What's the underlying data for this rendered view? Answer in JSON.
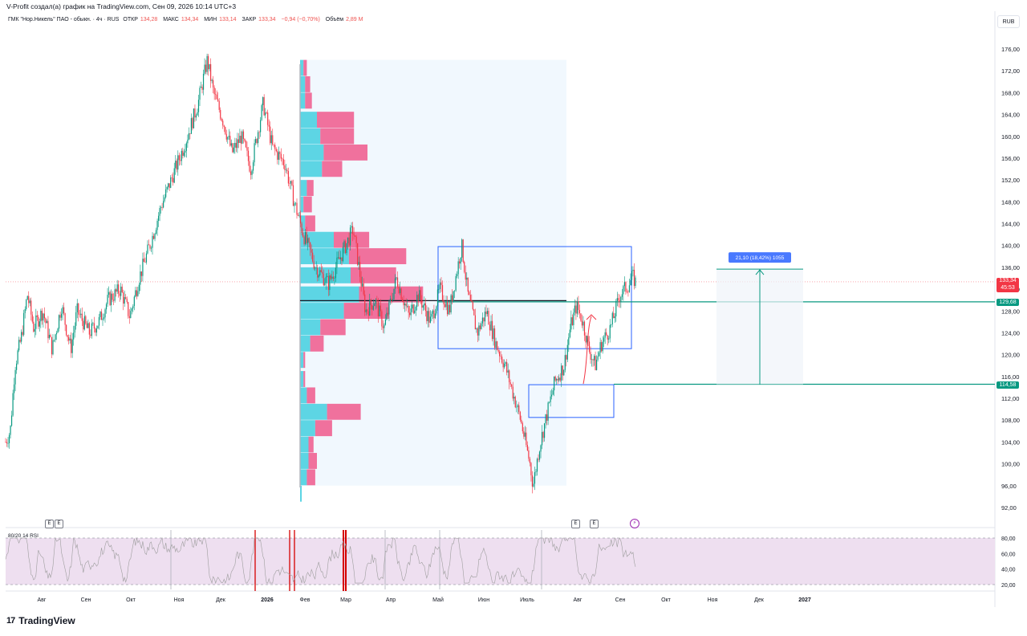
{
  "header": {
    "caption": "V-Profit создал(а) график на TradingView.com, Сен 09, 2026 10:14 UTC+3",
    "symbol": "ГМК \"Нор.Никель\" ПАО - обыкн. · 4ч · RUS",
    "open_label": "ОТКР",
    "open_value": "134,28",
    "high_label": "МАКС",
    "high_value": "134,34",
    "low_label": "МИН",
    "low_value": "133,14",
    "close_label": "ЗАКР",
    "close_value": "133,34",
    "change": "−0,94 (−0,70%)",
    "volume_label": "Объём",
    "volume_value": "2,89 M"
  },
  "currency_button": "RUB",
  "brand": {
    "mark": "17",
    "name": "TradingView"
  },
  "markers": {
    "earnings_label": "E"
  },
  "chart_data": {
    "type": "candlestick",
    "title": "",
    "price_axis_ticks": [
      "176,00",
      "172,00",
      "168,00",
      "164,00",
      "160,00",
      "156,00",
      "152,00",
      "148,00",
      "144,00",
      "140,00",
      "136,00",
      "132,00",
      "128,00",
      "124,00",
      "120,00",
      "116,00",
      "112,00",
      "108,00",
      "104,00",
      "100,00",
      "96,00",
      "92,00"
    ],
    "price_range": [
      90.5,
      178.5
    ],
    "time_axis_labels": [
      "Авг",
      "Сен",
      "Окт",
      "Ноя",
      "Дек",
      "2026",
      "Фев",
      "Мар",
      "Апр",
      "Май",
      "Июн",
      "Июль",
      "Авг",
      "Сен",
      "Окт",
      "Ноя",
      "Дек",
      "2027"
    ],
    "price_path": [
      [
        0,
        104
      ],
      [
        0.015,
        106
      ],
      [
        0.03,
        118
      ],
      [
        0.05,
        123
      ],
      [
        0.07,
        131
      ],
      [
        0.09,
        125
      ],
      [
        0.12,
        128
      ],
      [
        0.15,
        121
      ],
      [
        0.18,
        129
      ],
      [
        0.21,
        121
      ],
      [
        0.23,
        128
      ],
      [
        0.27,
        124
      ],
      [
        0.3,
        126
      ],
      [
        0.33,
        130
      ],
      [
        0.37,
        132
      ],
      [
        0.4,
        127
      ],
      [
        0.43,
        134
      ],
      [
        0.47,
        141
      ],
      [
        0.5,
        147
      ],
      [
        0.54,
        153
      ],
      [
        0.58,
        159
      ],
      [
        0.62,
        166
      ],
      [
        0.65,
        174
      ],
      [
        0.67,
        168
      ],
      [
        0.7,
        163
      ],
      [
        0.73,
        157
      ],
      [
        0.76,
        160
      ],
      [
        0.79,
        154
      ],
      [
        0.83,
        166
      ],
      [
        0.86,
        158
      ],
      [
        0.9,
        155
      ],
      [
        0.93,
        148
      ],
      [
        0.96,
        142
      ],
      [
        1.0,
        136
      ],
      [
        1.04,
        133
      ],
      [
        1.08,
        138
      ],
      [
        1.12,
        143
      ],
      [
        1.16,
        128
      ],
      [
        1.19,
        130
      ],
      [
        1.22,
        125
      ],
      [
        1.26,
        134
      ],
      [
        1.3,
        127
      ],
      [
        1.33,
        131
      ],
      [
        1.37,
        126
      ],
      [
        1.4,
        132
      ],
      [
        1.43,
        128
      ],
      [
        1.47,
        140
      ],
      [
        1.49,
        131
      ],
      [
        1.52,
        124
      ],
      [
        1.55,
        128
      ],
      [
        1.58,
        122
      ],
      [
        1.61,
        118
      ],
      [
        1.64,
        112
      ],
      [
        1.66,
        108
      ],
      [
        1.69,
        100
      ],
      [
        1.7,
        96
      ],
      [
        1.72,
        103
      ],
      [
        1.74,
        108
      ],
      [
        1.77,
        115
      ],
      [
        1.8,
        118
      ],
      [
        1.82,
        125
      ],
      [
        1.84,
        129
      ],
      [
        1.86,
        126
      ],
      [
        1.88,
        121
      ],
      [
        1.9,
        118
      ],
      [
        1.92,
        122
      ],
      [
        1.95,
        125
      ],
      [
        1.98,
        131
      ],
      [
        2.01,
        133
      ],
      [
        2.02,
        134.3
      ],
      [
        2.03,
        133.34
      ]
    ],
    "volume_profile": [
      {
        "price_low": 171,
        "price_high": 174,
        "buy": 2,
        "sell": 2
      },
      {
        "price_low": 168,
        "price_high": 171,
        "buy": 3,
        "sell": 3
      },
      {
        "price_low": 165,
        "price_high": 168,
        "buy": 3,
        "sell": 4
      },
      {
        "price_low": 161.5,
        "price_high": 164.5,
        "buy": 10,
        "sell": 22
      },
      {
        "price_low": 158.5,
        "price_high": 161.5,
        "buy": 12,
        "sell": 20
      },
      {
        "price_low": 155.5,
        "price_high": 158.5,
        "buy": 14,
        "sell": 26
      },
      {
        "price_low": 152.5,
        "price_high": 155.5,
        "buy": 13,
        "sell": 12
      },
      {
        "price_low": 149,
        "price_high": 152,
        "buy": 4,
        "sell": 4
      },
      {
        "price_low": 146,
        "price_high": 149,
        "buy": 2,
        "sell": 5
      },
      {
        "price_low": 142.5,
        "price_high": 145.5,
        "buy": 3,
        "sell": 6
      },
      {
        "price_low": 139.5,
        "price_high": 142.5,
        "buy": 20,
        "sell": 21
      },
      {
        "price_low": 136.5,
        "price_high": 139.5,
        "buy": 29,
        "sell": 34
      },
      {
        "price_low": 133,
        "price_high": 136,
        "buy": 30,
        "sell": 27
      },
      {
        "price_low": 129.5,
        "price_high": 132.5,
        "buy": 35,
        "sell": 38
      },
      {
        "price_low": 126.5,
        "price_high": 129.5,
        "buy": 26,
        "sell": 27
      },
      {
        "price_low": 123.5,
        "price_high": 126.5,
        "buy": 12,
        "sell": 15
      },
      {
        "price_low": 120.5,
        "price_high": 123.5,
        "buy": 6,
        "sell": 8
      },
      {
        "price_low": 117.5,
        "price_high": 120.5,
        "buy": 2,
        "sell": 1
      },
      {
        "price_low": 114,
        "price_high": 117,
        "buy": 2,
        "sell": 1
      },
      {
        "price_low": 111,
        "price_high": 114,
        "buy": 4,
        "sell": 5
      },
      {
        "price_low": 108,
        "price_high": 111,
        "buy": 16,
        "sell": 20
      },
      {
        "price_low": 105,
        "price_high": 108,
        "buy": 9,
        "sell": 10
      },
      {
        "price_low": 102,
        "price_high": 105,
        "buy": 5,
        "sell": 3
      },
      {
        "price_low": 99,
        "price_high": 102,
        "buy": 5,
        "sell": 5
      },
      {
        "price_low": 96,
        "price_high": 99,
        "buy": 4,
        "sell": 5
      },
      {
        "price_low": 93,
        "price_high": 96,
        "buy": 1,
        "sell": 0
      }
    ],
    "point_of_control": 129.9,
    "profile_range_prices": [
      96,
      174
    ],
    "zones": [
      {
        "name": "range-box",
        "price_top": 139.8,
        "price_bottom": 121.1
      },
      {
        "name": "support-box",
        "price_top": 114.5,
        "price_bottom": 108.5
      }
    ],
    "levels": [
      {
        "name": "resistance",
        "value": 129.68,
        "label": "129,68",
        "color": "#089981"
      },
      {
        "name": "support",
        "value": 114.58,
        "label": "114,58",
        "color": "#089981"
      },
      {
        "name": "last-price",
        "value": 133.34,
        "label": "133,34",
        "color": "#f23645"
      }
    ],
    "last_price_countdown": "45:53",
    "measure": {
      "from": 114.58,
      "to": 135.68,
      "label": "21,10 (18,42%) 1055"
    },
    "rsi": {
      "label": "80/20 14 RSI",
      "upper": 80,
      "lower": 20,
      "ticks": [
        "80,00",
        "60,00",
        "40,00",
        "20,00"
      ],
      "highlight_bars": 6
    },
    "colors": {
      "up": "#089981",
      "down": "#f23645",
      "profile_up": "#4dd0e1",
      "profile_down": "#f06292",
      "rsi_band": "#eedff0"
    }
  }
}
